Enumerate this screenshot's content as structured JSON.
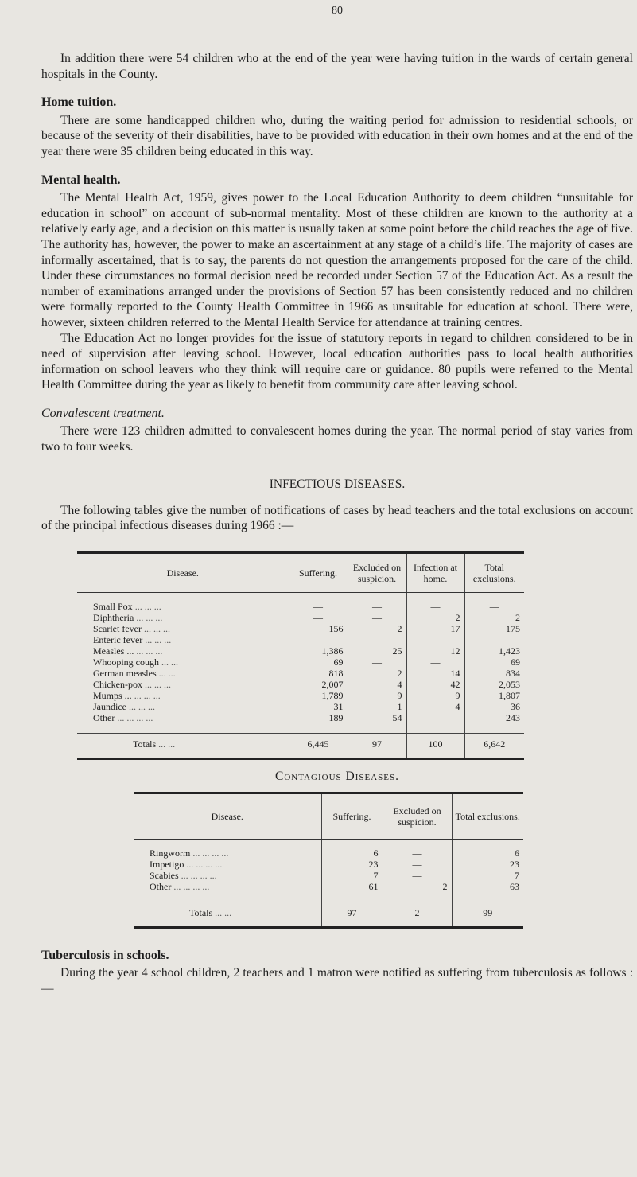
{
  "page_number": "80",
  "intro": "In addition there were 54 children who at the end of the year were having tuition in the wards of certain general hospitals in the County.",
  "home_tuition": {
    "heading": "Home tuition.",
    "text": "There are some handicapped children who, during the waiting period for admission to residential schools, or because of the severity of their disabilities, have to be provided with education in their own homes and at the end of the year there were 35 children being educated in this way."
  },
  "mental_health": {
    "heading": "Mental health.",
    "p1": "The Mental Health Act, 1959, gives power to the Local Education Authority to deem children “unsuitable for education in school” on account of sub-normal mentality. Most of these children are known to the authority at a relatively early age, and a decision on this matter is usually taken at some point before the child reaches the age of five. The authority has, however, the power to make an ascertainment at any stage of a child’s life. The majority of cases are informally ascertained, that is to say, the parents do not question the arrangements proposed for the care of the child. Under these circumstances no formal decision need be recorded under Section 57 of the Education Act. As a result the number of examinations arranged under the provisions of Section 57 has been consistently reduced and no children were formally reported to the County Health Committee in 1966 as unsuitable for education at school. There were, however, sixteen children referred to the Mental Health Service for attendance at training centres.",
    "p2": "The Education Act no longer provides for the issue of statutory reports in regard to children considered to be in need of supervision after leaving school. However, local education authorities pass to local health authorities information on school leavers who they think will require care or guidance. 80 pupils were referred to the Mental Health Committee during the year as likely to benefit from community care after leaving school."
  },
  "convalescent": {
    "heading": "Convalescent treatment.",
    "text": "There were 123 children admitted to convalescent homes during the year. The normal period of stay varies from two to four weeks."
  },
  "infectious": {
    "heading": "INFECTIOUS DISEASES.",
    "text": "The following tables give the number of notifications of cases by head teachers and the total exclusions on account of the principal infectious diseases during 1966 :—",
    "headers": [
      "Disease.",
      "Suffering.",
      "Excluded on suspicion.",
      "Infection at home.",
      "Total exclusions."
    ],
    "rows": [
      {
        "disease": "Small Pox",
        "dots": "...   ...   ...",
        "values": [
          "—",
          "—",
          "—",
          "—"
        ]
      },
      {
        "disease": "Diphtheria",
        "dots": "...   ...   ...",
        "values": [
          "—",
          "—",
          "2",
          "2"
        ]
      },
      {
        "disease": "Scarlet fever",
        "dots": "...   ...   ...",
        "values": [
          "156",
          "2",
          "17",
          "175"
        ]
      },
      {
        "disease": "Enteric fever",
        "dots": "...   ...   ...",
        "values": [
          "—",
          "—",
          "—",
          "—"
        ]
      },
      {
        "disease": "Measles ...",
        "dots": "...   ...   ...",
        "values": [
          "1,386",
          "25",
          "12",
          "1,423"
        ]
      },
      {
        "disease": "Whooping cough",
        "dots": "   ...   ...",
        "values": [
          "69",
          "—",
          "—",
          "69"
        ]
      },
      {
        "disease": "German measles",
        "dots": "   ...   ...",
        "values": [
          "818",
          "2",
          "14",
          "834"
        ]
      },
      {
        "disease": "Chicken-pox",
        "dots": "...   ...   ...",
        "values": [
          "2,007",
          "4",
          "42",
          "2,053"
        ]
      },
      {
        "disease": "Mumps ...",
        "dots": "...   ...   ...",
        "values": [
          "1,789",
          "9",
          "9",
          "1,807"
        ]
      },
      {
        "disease": "Jaundice",
        "dots": "...   ...   ...",
        "values": [
          "31",
          "1",
          "4",
          "36"
        ]
      },
      {
        "disease": "Other",
        "dots": "...   ...   ...   ...",
        "values": [
          "189",
          "54",
          "—",
          "243"
        ]
      }
    ],
    "totals": {
      "label": "Totals",
      "dots": "...   ...",
      "values": [
        "6,445",
        "97",
        "100",
        "6,642"
      ]
    }
  },
  "contagious": {
    "heading": "Contagious Diseases.",
    "headers": [
      "Disease.",
      "Suffering.",
      "Excluded on suspicion.",
      "Total exclusions."
    ],
    "rows": [
      {
        "disease": "Ringworm",
        "dots": "...   ...   ...   ...",
        "values": [
          "6",
          "—",
          "6"
        ]
      },
      {
        "disease": "Impetigo",
        "dots": "...   ...   ...   ...",
        "values": [
          "23",
          "—",
          "23"
        ]
      },
      {
        "disease": "Scabies",
        "dots": "...   ...   ...   ...",
        "values": [
          "7",
          "—",
          "7"
        ]
      },
      {
        "disease": "Other",
        "dots": "...   ...   ...   ...",
        "values": [
          "61",
          "2",
          "63"
        ]
      }
    ],
    "totals": {
      "label": "Totals",
      "dots": "...   ...",
      "values": [
        "97",
        "2",
        "99"
      ]
    }
  },
  "tuberculosis": {
    "heading": "Tuberculosis in schools.",
    "text": "During the year 4 school children, 2 teachers and 1 matron were notified as suffering from tuberculosis as follows :—"
  }
}
